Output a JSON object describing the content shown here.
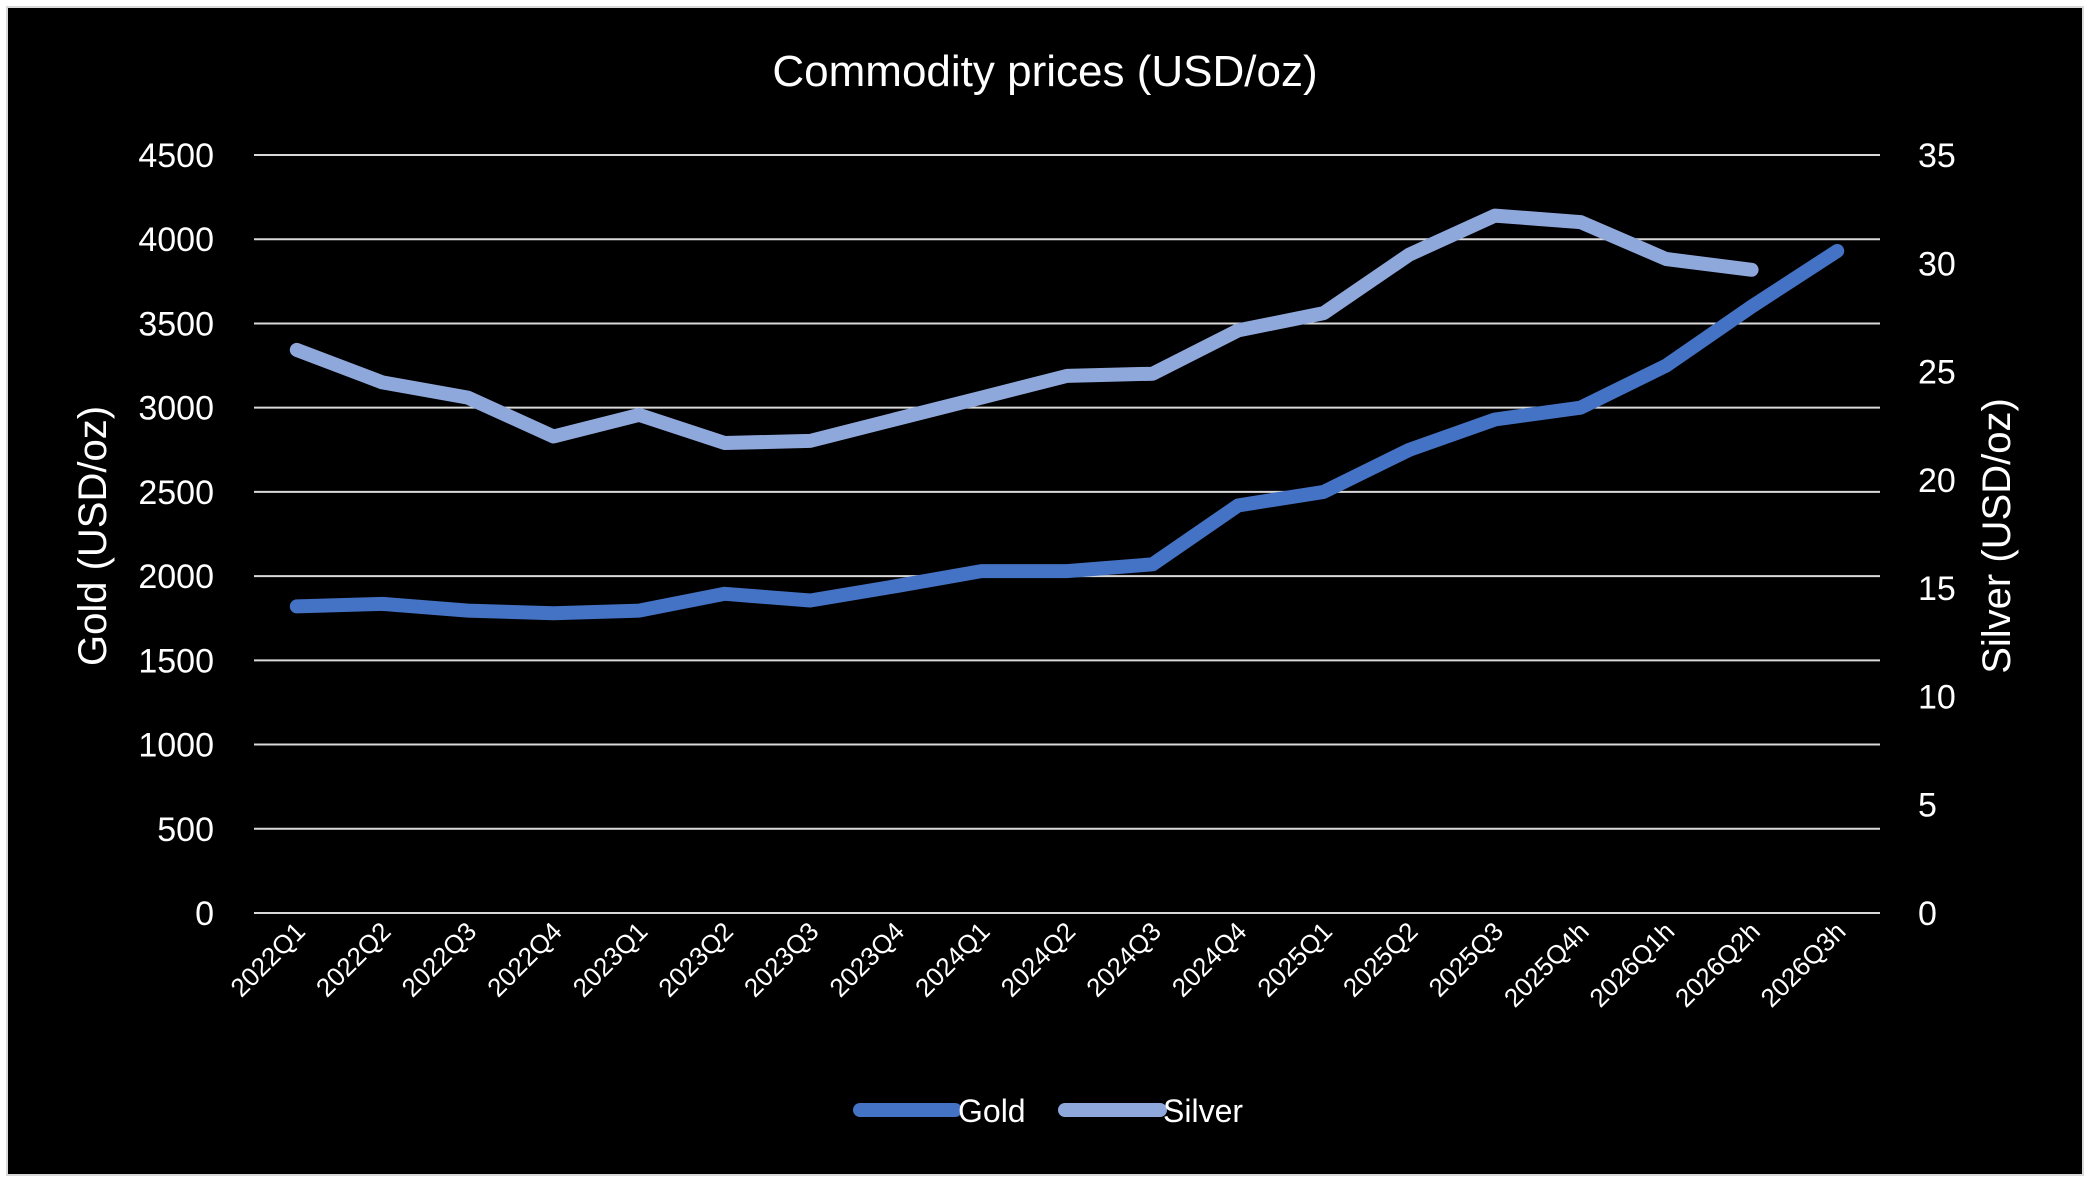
{
  "chart_data": {
    "type": "line",
    "title": "Commodity prices (USD/oz)",
    "categories": [
      "2022Q1",
      "2022Q2",
      "2022Q3",
      "2022Q4",
      "2023Q1",
      "2023Q2",
      "2023Q3",
      "2023Q4",
      "2024Q1",
      "2024Q2",
      "2024Q3",
      "2024Q4",
      "2025Q1",
      "2025Q2",
      "2025Q3",
      "2025Q4h",
      "2026Q1h",
      "2026Q2h",
      "2026Q3h"
    ],
    "y_left": {
      "label": "Gold (USD/oz)",
      "ylim": [
        0,
        4500
      ],
      "ticks": [
        0,
        500,
        1000,
        1500,
        2000,
        2500,
        3000,
        3500,
        4000,
        4500
      ]
    },
    "y_right": {
      "label": "Silver (USD/oz)",
      "ylim": [
        0,
        35
      ],
      "ticks": [
        0,
        5,
        10,
        15,
        20,
        25,
        30,
        35
      ]
    },
    "series": [
      {
        "name": "Gold",
        "axis": "left",
        "color": "#4472c4",
        "values": [
          1820,
          1835,
          1795,
          1780,
          1795,
          1895,
          1855,
          1940,
          2030,
          2030,
          2070,
          2420,
          2500,
          2750,
          2930,
          3000,
          3250,
          3600,
          3930
        ]
      },
      {
        "name": "Silver",
        "axis": "right",
        "color": "#8fa8dc",
        "values": [
          26.0,
          24.5,
          23.8,
          22.0,
          23.0,
          21.7,
          21.8,
          22.8,
          23.8,
          24.8,
          24.9,
          26.9,
          27.7,
          30.4,
          32.2,
          31.9,
          30.2,
          29.7,
          null
        ]
      }
    ],
    "grid": true,
    "legend_position": "bottom"
  }
}
